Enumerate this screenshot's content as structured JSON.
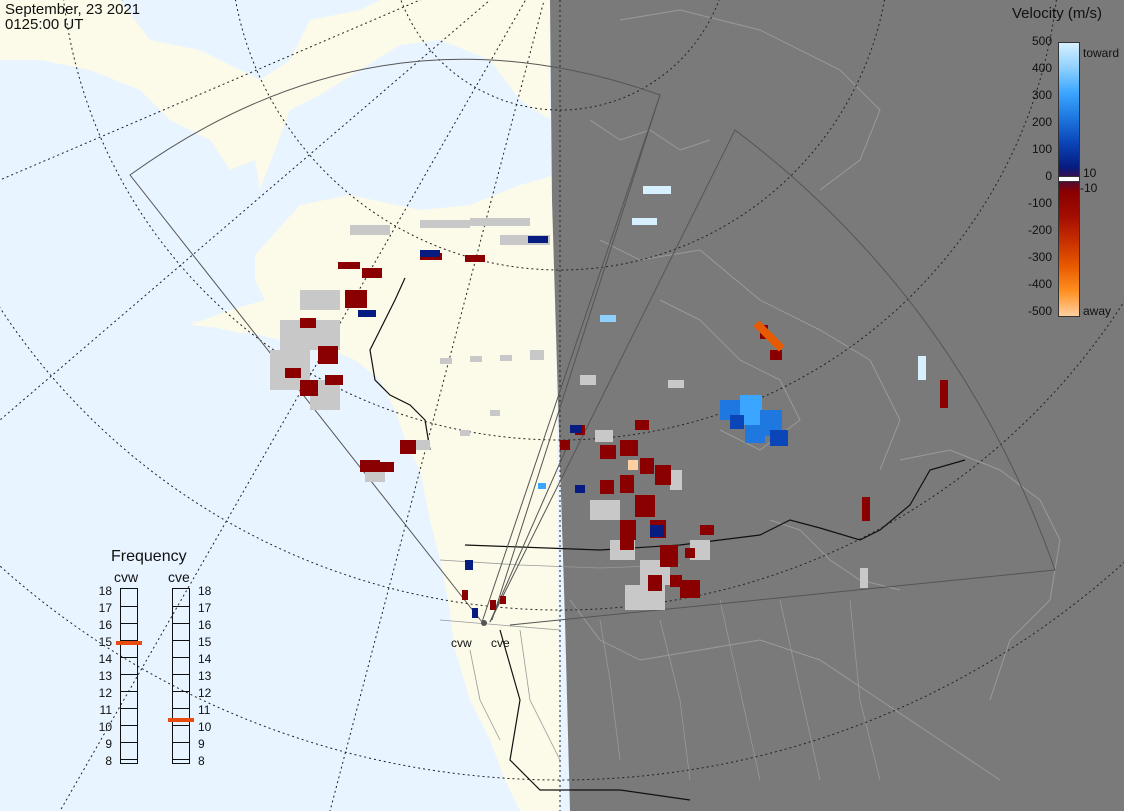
{
  "timestamp": {
    "date": "September, 23 2021",
    "time": "0125:00 UT"
  },
  "legend": {
    "title": "Velocity (m/s)",
    "ticks": [
      "500",
      "400",
      "300",
      "200",
      "100",
      "0",
      "-100",
      "-200",
      "-300",
      "-400",
      "-500"
    ],
    "toward": "toward",
    "away": "away",
    "zero_pos": "10",
    "zero_neg": "-10",
    "colors": [
      "#d6f0ff",
      "#8fd0ff",
      "#3ba6ff",
      "#1e78e0",
      "#0a46b8",
      "#061c80",
      "#8a0000",
      "#a40d00",
      "#c83000",
      "#e85a00",
      "#ff9020",
      "#ffd0a0"
    ]
  },
  "radars": [
    {
      "code": "cvw",
      "frequency_mhz": 15.0
    },
    {
      "code": "cve",
      "frequency_mhz": 10.5
    }
  ],
  "frequency_panel": {
    "title": "Frequency",
    "scale": [
      "18",
      "17",
      "16",
      "15",
      "14",
      "13",
      "12",
      "11",
      "10",
      "9",
      "8"
    ],
    "marker_color": "#e84a10"
  },
  "colors": {
    "ocean": "#e8f4ff",
    "land": "#fcfae8",
    "night": "#7a7a7a",
    "ground_scatter": "#c8c8c8"
  }
}
